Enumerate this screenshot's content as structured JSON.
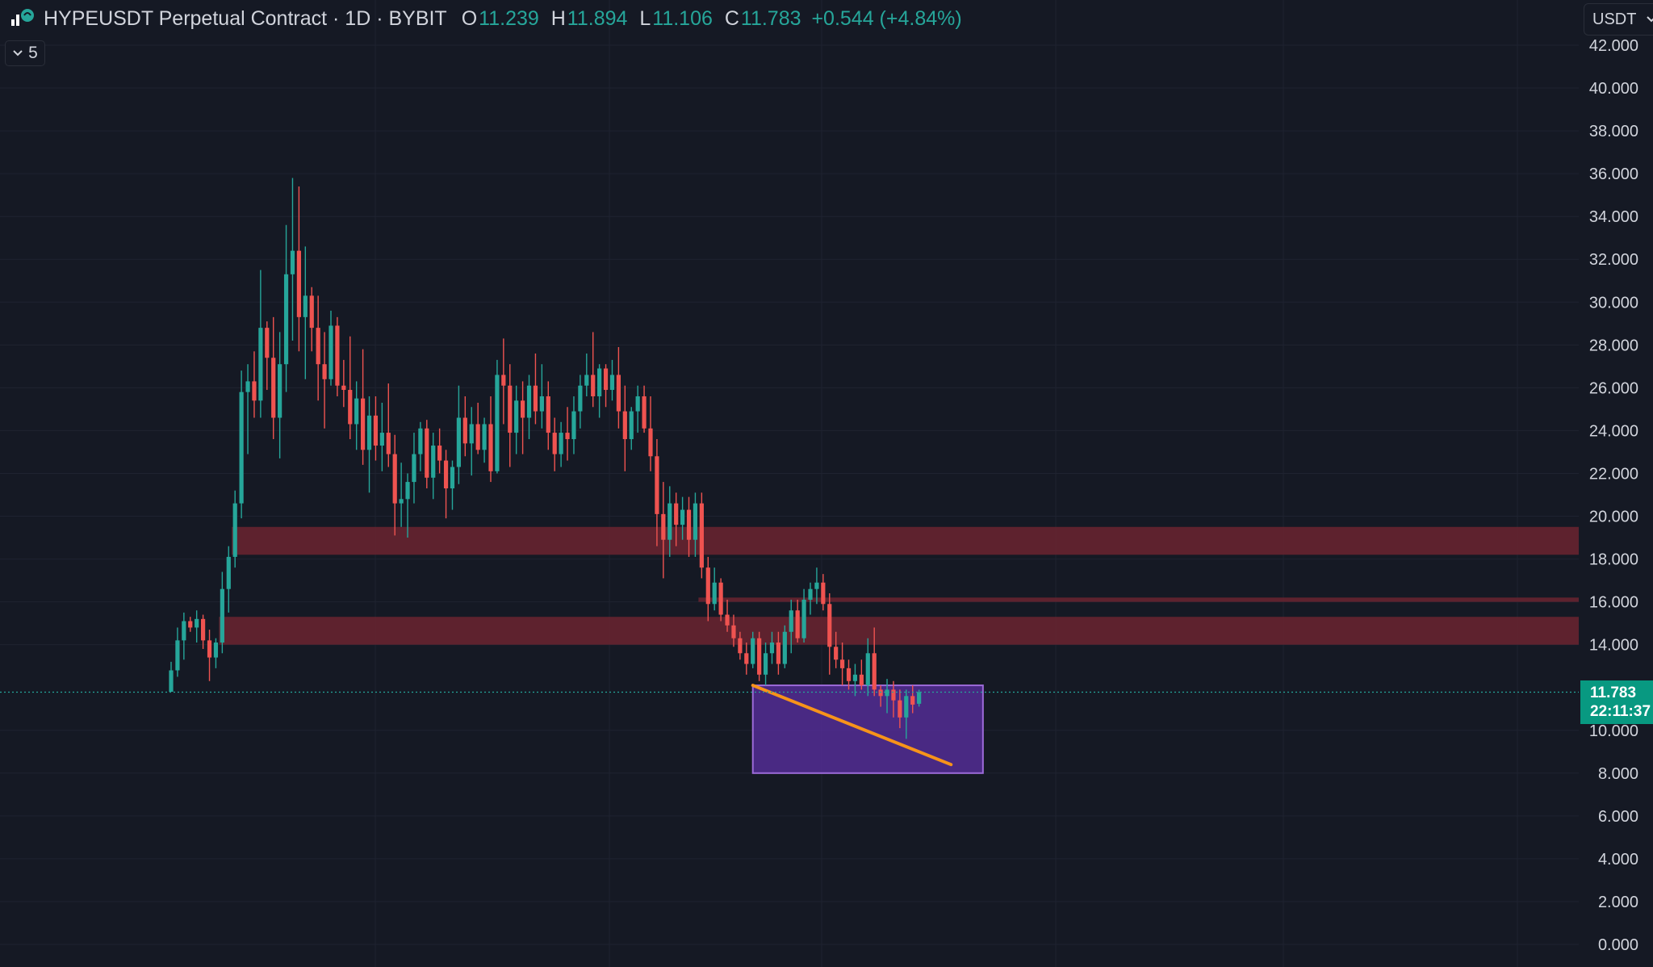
{
  "header": {
    "title": "HYPEUSDT Perpetual Contract · 1D · BYBIT",
    "open_label": "O",
    "open": "11.239",
    "high_label": "H",
    "high": "11.894",
    "low_label": "L",
    "low": "11.106",
    "close_label": "C",
    "close": "11.783",
    "change": "+0.544 (+4.84%)"
  },
  "indicator_toggle": {
    "count": "5"
  },
  "currency_selector": {
    "label": "USDT"
  },
  "price_tag": {
    "price": "11.783",
    "countdown": "22:11:37"
  },
  "colors": {
    "background": "#151924",
    "up": "#26a69a",
    "down": "#ef5350",
    "zone": "#6b2530",
    "target_box": "#5b2fa3",
    "trendline": "#f7931a"
  },
  "chart_data": {
    "type": "candlestick",
    "symbol": "HYPEUSDT",
    "timeframe": "1D",
    "exchange": "BYBIT",
    "ylim": [
      0,
      42
    ],
    "y_ticks": [
      "0.000",
      "2.000",
      "4.000",
      "6.000",
      "8.000",
      "10.000",
      "14.000",
      "16.000",
      "18.000",
      "20.000",
      "22.000",
      "24.000",
      "26.000",
      "28.000",
      "30.000",
      "32.000",
      "34.000",
      "36.000",
      "38.000",
      "40.000",
      "42.000"
    ],
    "last_price": 11.783,
    "candles": [
      [
        11.8,
        13.2,
        11.8,
        12.8
      ],
      [
        12.8,
        14.8,
        12.5,
        14.2
      ],
      [
        14.2,
        15.5,
        13.3,
        15.1
      ],
      [
        15.1,
        15.3,
        14.6,
        14.8
      ],
      [
        14.8,
        15.6,
        14.1,
        15.2
      ],
      [
        15.2,
        15.4,
        13.8,
        14.2
      ],
      [
        14.2,
        14.7,
        12.3,
        13.4
      ],
      [
        13.4,
        14.3,
        12.9,
        14.1
      ],
      [
        14.1,
        17.4,
        13.6,
        16.6
      ],
      [
        16.6,
        18.6,
        15.5,
        18.1
      ],
      [
        18.1,
        21.2,
        17.6,
        20.6
      ],
      [
        20.6,
        26.8,
        19.9,
        25.8
      ],
      [
        25.8,
        27.1,
        22.9,
        26.3
      ],
      [
        26.3,
        27.7,
        24.6,
        25.4
      ],
      [
        25.4,
        31.5,
        24.6,
        28.8
      ],
      [
        28.8,
        29.1,
        25.9,
        27.4
      ],
      [
        27.4,
        29.3,
        23.6,
        24.6
      ],
      [
        24.6,
        28.6,
        22.7,
        27.1
      ],
      [
        27.1,
        33.6,
        25.8,
        31.3
      ],
      [
        31.3,
        35.8,
        28.2,
        32.4
      ],
      [
        32.4,
        35.4,
        27.7,
        29.3
      ],
      [
        29.3,
        32.6,
        26.4,
        30.3
      ],
      [
        30.3,
        30.7,
        27.7,
        28.8
      ],
      [
        28.8,
        30.3,
        25.4,
        27.1
      ],
      [
        27.1,
        28.6,
        24.1,
        26.4
      ],
      [
        26.4,
        29.6,
        26.1,
        28.9
      ],
      [
        28.9,
        29.3,
        25.6,
        26.1
      ],
      [
        26.1,
        27.3,
        25.1,
        25.9
      ],
      [
        25.9,
        28.4,
        23.6,
        24.3
      ],
      [
        24.3,
        26.3,
        23.1,
        25.5
      ],
      [
        25.5,
        27.8,
        22.4,
        23.1
      ],
      [
        23.1,
        25.6,
        21.1,
        24.7
      ],
      [
        24.7,
        25.6,
        22.6,
        23.3
      ],
      [
        23.3,
        25.3,
        22.1,
        23.9
      ],
      [
        23.9,
        26.2,
        22.3,
        22.9
      ],
      [
        22.9,
        23.8,
        19.1,
        20.6
      ],
      [
        20.6,
        22.5,
        19.5,
        20.8
      ],
      [
        20.8,
        22.0,
        19.0,
        21.6
      ],
      [
        21.6,
        23.9,
        20.6,
        22.9
      ],
      [
        22.9,
        24.4,
        22.1,
        24.1
      ],
      [
        24.1,
        24.5,
        21.3,
        21.8
      ],
      [
        21.8,
        23.9,
        20.8,
        23.3
      ],
      [
        23.3,
        24.1,
        22.0,
        22.6
      ],
      [
        22.6,
        23.1,
        19.9,
        21.3
      ],
      [
        21.3,
        22.6,
        20.3,
        22.3
      ],
      [
        22.3,
        26.1,
        21.5,
        24.6
      ],
      [
        24.6,
        25.6,
        22.8,
        23.4
      ],
      [
        23.4,
        25.1,
        21.9,
        24.3
      ],
      [
        24.3,
        25.3,
        22.9,
        23.1
      ],
      [
        23.1,
        24.6,
        22.5,
        24.3
      ],
      [
        24.3,
        25.6,
        21.6,
        22.1
      ],
      [
        22.1,
        27.3,
        22.0,
        26.6
      ],
      [
        26.6,
        28.3,
        24.3,
        26.1
      ],
      [
        26.1,
        27.1,
        22.3,
        23.9
      ],
      [
        23.9,
        26.1,
        22.9,
        25.4
      ],
      [
        25.4,
        26.3,
        22.9,
        24.6
      ],
      [
        24.6,
        26.6,
        23.6,
        26.1
      ],
      [
        26.1,
        27.6,
        24.3,
        24.9
      ],
      [
        24.9,
        27.1,
        24.1,
        25.6
      ],
      [
        25.6,
        26.3,
        23.1,
        23.9
      ],
      [
        23.9,
        24.6,
        22.1,
        22.9
      ],
      [
        22.9,
        24.4,
        22.3,
        23.9
      ],
      [
        23.9,
        25.1,
        22.6,
        23.6
      ],
      [
        23.6,
        25.6,
        22.9,
        24.9
      ],
      [
        24.9,
        26.6,
        24.1,
        26.1
      ],
      [
        26.1,
        27.6,
        25.6,
        26.6
      ],
      [
        26.6,
        28.6,
        25.1,
        25.6
      ],
      [
        25.6,
        27.1,
        24.6,
        26.9
      ],
      [
        26.9,
        27.1,
        25.1,
        25.9
      ],
      [
        25.9,
        27.3,
        25.4,
        26.6
      ],
      [
        26.6,
        27.9,
        24.1,
        24.9
      ],
      [
        24.9,
        26.1,
        22.1,
        23.6
      ],
      [
        23.6,
        25.1,
        23.1,
        24.9
      ],
      [
        24.9,
        26.1,
        23.9,
        25.6
      ],
      [
        25.6,
        26.1,
        23.9,
        24.1
      ],
      [
        24.1,
        25.6,
        22.1,
        22.8
      ],
      [
        22.8,
        23.6,
        18.6,
        20.1
      ],
      [
        20.1,
        21.6,
        17.1,
        18.9
      ],
      [
        18.9,
        21.4,
        18.1,
        20.6
      ],
      [
        20.6,
        21.1,
        18.6,
        19.6
      ],
      [
        19.6,
        20.9,
        18.9,
        20.3
      ],
      [
        20.3,
        20.9,
        18.1,
        18.9
      ],
      [
        18.9,
        21.1,
        18.1,
        20.6
      ],
      [
        20.6,
        21.1,
        17.1,
        17.6
      ],
      [
        17.6,
        18.1,
        15.1,
        15.9
      ],
      [
        15.9,
        17.6,
        15.6,
        16.9
      ],
      [
        16.9,
        17.1,
        15.1,
        15.4
      ],
      [
        15.4,
        16.1,
        14.6,
        14.9
      ],
      [
        14.9,
        15.4,
        13.9,
        14.3
      ],
      [
        14.3,
        14.6,
        13.3,
        13.6
      ],
      [
        13.6,
        14.1,
        12.6,
        13.1
      ],
      [
        13.1,
        14.6,
        12.9,
        14.3
      ],
      [
        14.3,
        14.6,
        12.3,
        12.6
      ],
      [
        12.6,
        14.1,
        12.1,
        13.6
      ],
      [
        13.6,
        14.6,
        13.1,
        14.1
      ],
      [
        14.1,
        14.6,
        12.6,
        13.1
      ],
      [
        13.1,
        14.9,
        12.9,
        14.6
      ],
      [
        14.6,
        16.1,
        13.6,
        15.6
      ],
      [
        15.6,
        16.1,
        14.1,
        14.3
      ],
      [
        14.3,
        16.6,
        14.1,
        16.1
      ],
      [
        16.1,
        16.9,
        15.4,
        16.6
      ],
      [
        16.6,
        17.6,
        15.9,
        16.9
      ],
      [
        16.9,
        17.3,
        15.6,
        15.9
      ],
      [
        15.9,
        16.4,
        12.6,
        13.9
      ],
      [
        13.9,
        14.6,
        12.9,
        13.3
      ],
      [
        13.3,
        14.1,
        12.1,
        12.9
      ],
      [
        12.9,
        13.3,
        11.9,
        12.3
      ],
      [
        12.3,
        13.1,
        11.6,
        12.6
      ],
      [
        12.6,
        13.3,
        11.9,
        12.1
      ],
      [
        12.1,
        14.3,
        11.6,
        13.6
      ],
      [
        13.6,
        14.8,
        11.6,
        11.9
      ],
      [
        11.9,
        12.1,
        11.1,
        11.6
      ],
      [
        11.6,
        12.4,
        10.8,
        11.9
      ],
      [
        11.9,
        12.3,
        10.6,
        11.4
      ],
      [
        11.4,
        11.9,
        10.1,
        10.6
      ],
      [
        10.6,
        11.9,
        9.6,
        11.6
      ],
      [
        11.6,
        12.1,
        10.8,
        11.2
      ],
      [
        11.239,
        11.894,
        11.106,
        11.783
      ]
    ],
    "zones": [
      {
        "from": 18.2,
        "to": 19.5,
        "start_index": 10
      },
      {
        "from": 14.0,
        "to": 15.3,
        "start_index": 8
      },
      {
        "from": 16.0,
        "to": 16.2,
        "start_index": 83
      }
    ],
    "target_box": {
      "from": 8.0,
      "to": 12.1,
      "start_index": 91,
      "end_index": 127
    },
    "trendline": {
      "from_index": 91,
      "from_price": 12.1,
      "to_index": 122,
      "to_price": 8.4
    }
  }
}
